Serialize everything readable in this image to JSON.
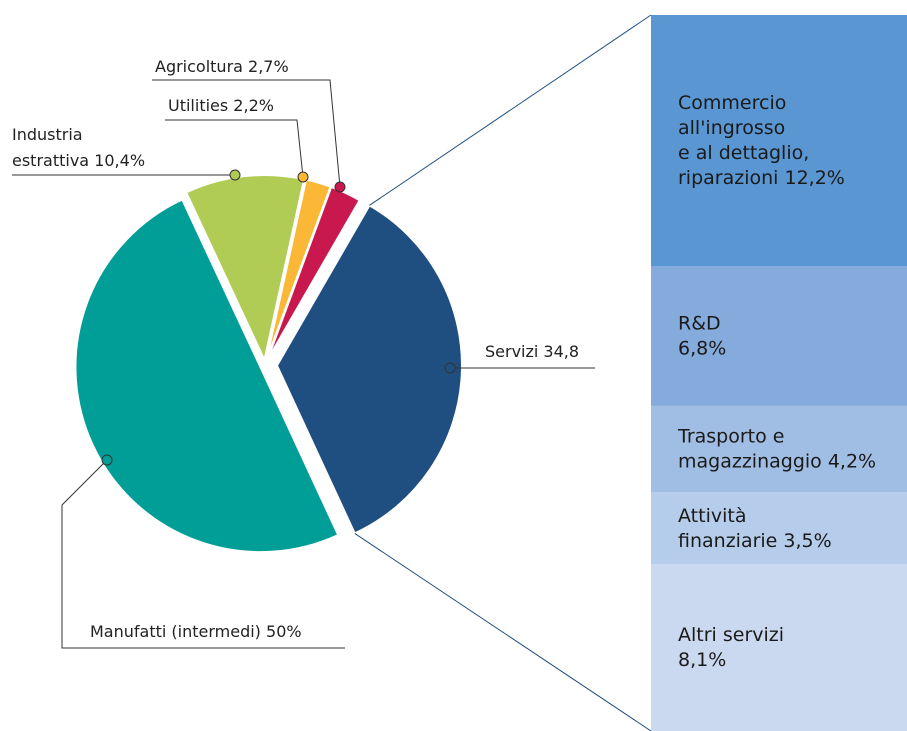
{
  "chart_data": {
    "type": "pie",
    "labels": [
      [
        "Servizi 34,8"
      ],
      [
        "Manufatti (intermedi) 50%"
      ],
      [
        "Industria",
        "estrattiva 10,4%"
      ],
      [
        "Utilities 2,2%"
      ],
      [
        "Agricoltura 2,7%"
      ]
    ],
    "values": [
      34.8,
      50,
      10.4,
      2.2,
      2.7
    ],
    "colors": [
      "#1f4e80",
      "#009e96",
      "#b0cc55",
      "#fbb836",
      "#c8184e"
    ],
    "breakdown": {
      "type": "bar",
      "labels": [
        [
          "Commercio",
          "all'ingrosso",
          "e al dettaglio,",
          "riparazioni 12,2%"
        ],
        [
          "R&D",
          "6,8%"
        ],
        [
          "Trasporto e",
          "magazzinaggio 4,2%"
        ],
        [
          "Attività",
          "finanziarie 3,5%"
        ],
        [
          "Altri servizi",
          "8,1%"
        ]
      ],
      "values": [
        12.2,
        6.8,
        4.2,
        3.5,
        8.1
      ],
      "colors": [
        "#5a96d2",
        "#84abdc",
        "#a0bde3",
        "#b5cdea",
        "#cad9f0"
      ]
    }
  }
}
